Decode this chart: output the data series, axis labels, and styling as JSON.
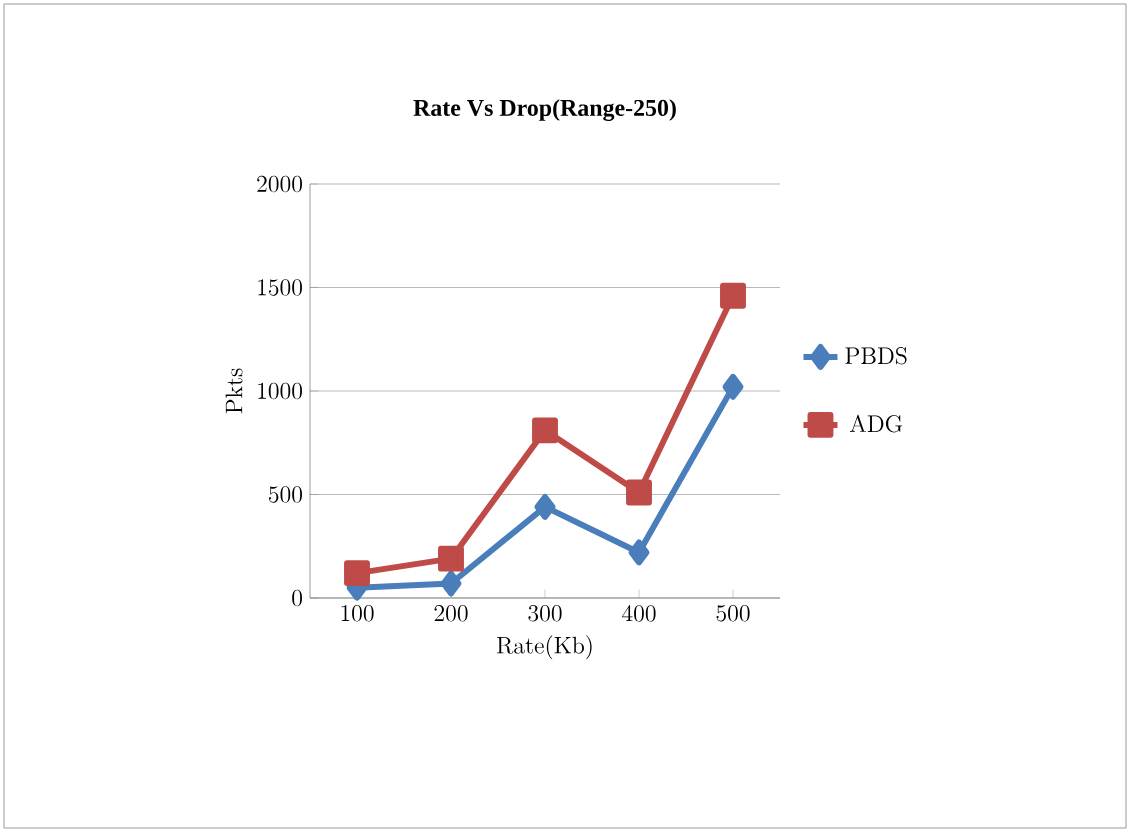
{
  "chart_data": {
    "type": "line",
    "title": "Rate Vs Drop(Range-250)",
    "xlabel": "Rate(Kb)",
    "ylabel": "Pkts",
    "categories": [
      "100",
      "200",
      "300",
      "400",
      "500"
    ],
    "series": [
      {
        "name": "PBDS",
        "color": "#4a7ebb",
        "marker": "diamond",
        "values": [
          50,
          70,
          440,
          220,
          1020
        ]
      },
      {
        "name": "ADG",
        "color": "#be4b48",
        "marker": "square",
        "values": [
          120,
          190,
          810,
          510,
          1460
        ]
      }
    ],
    "ylim": [
      0,
      2000
    ],
    "yticks": [
      0,
      500,
      1000,
      1500,
      2000
    ],
    "grid": "y",
    "legend": "right",
    "line_style": "solid"
  }
}
